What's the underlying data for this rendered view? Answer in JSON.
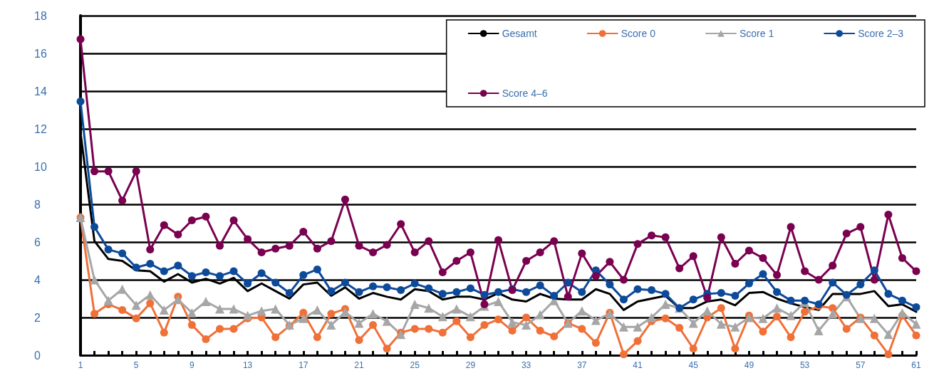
{
  "chart_data": {
    "type": "line",
    "categories": [
      "1",
      null,
      null,
      null,
      "5",
      null,
      null,
      null,
      "9",
      null,
      null,
      null,
      "13",
      null,
      null,
      null,
      "17",
      null,
      null,
      null,
      "21",
      null,
      null,
      null,
      "25",
      null,
      null,
      null,
      "29",
      null,
      null,
      null,
      "33",
      null,
      null,
      null,
      "37",
      null,
      null,
      null,
      "41",
      null,
      null,
      null,
      "45",
      null,
      null,
      null,
      "49",
      null,
      null,
      null,
      "53",
      null,
      null,
      null,
      "57",
      null,
      null,
      null,
      "61"
    ],
    "series": [
      {
        "name": "Gesamt",
        "color": "#000000",
        "marker": "none",
        "values": [
          11.8,
          6.05,
          5.1,
          5.0,
          4.5,
          4.45,
          3.9,
          4.3,
          3.85,
          4.05,
          3.8,
          4.1,
          3.4,
          3.8,
          3.4,
          3.0,
          3.75,
          3.85,
          3.15,
          3.6,
          3.0,
          3.3,
          3.1,
          2.95,
          3.5,
          3.4,
          2.95,
          3.1,
          3.1,
          2.95,
          3.3,
          2.95,
          2.85,
          3.25,
          3.0,
          2.95,
          2.95,
          3.5,
          3.25,
          2.4,
          2.85,
          3.0,
          3.15,
          2.5,
          2.5,
          2.85,
          2.95,
          2.65,
          3.3,
          3.35,
          3.0,
          2.75,
          2.55,
          2.4,
          3.25,
          3.25,
          3.25,
          3.4,
          2.6,
          2.7,
          2.3
        ]
      },
      {
        "name": "Score 0",
        "color": "#f07038",
        "marker": "circle",
        "values": [
          7.3,
          2.2,
          2.7,
          2.4,
          1.95,
          2.75,
          1.2,
          3.1,
          1.6,
          0.85,
          1.4,
          1.4,
          1.95,
          2.0,
          0.95,
          1.55,
          2.25,
          0.95,
          2.2,
          2.45,
          0.8,
          1.6,
          0.35,
          1.2,
          1.4,
          1.4,
          1.2,
          1.8,
          0.95,
          1.6,
          1.9,
          1.3,
          2.0,
          1.3,
          1.0,
          1.7,
          1.4,
          0.65,
          2.25,
          0.05,
          0.75,
          1.8,
          1.95,
          1.45,
          0.35,
          2.0,
          2.5,
          0.35,
          2.1,
          1.25,
          2.05,
          0.95,
          2.3,
          2.6,
          2.5,
          1.4,
          2.0,
          1.05,
          0.05,
          2.1,
          1.05
        ]
      },
      {
        "name": "Score 1",
        "color": "#a6a6a6",
        "marker": "triangle",
        "values": [
          7.3,
          4.0,
          2.9,
          3.5,
          2.65,
          3.2,
          2.4,
          2.95,
          2.25,
          2.85,
          2.45,
          2.45,
          2.1,
          2.35,
          2.45,
          1.6,
          1.95,
          2.4,
          1.6,
          2.3,
          1.7,
          2.2,
          1.8,
          1.1,
          2.7,
          2.5,
          2.05,
          2.45,
          2.05,
          2.6,
          2.85,
          1.75,
          1.6,
          2.15,
          2.9,
          1.7,
          2.35,
          1.85,
          2.2,
          1.5,
          1.5,
          2.0,
          2.7,
          2.5,
          1.7,
          2.35,
          1.65,
          1.5,
          2.0,
          1.95,
          2.5,
          2.1,
          2.8,
          1.3,
          2.2,
          3.1,
          1.95,
          1.95,
          1.1,
          2.25,
          1.65
        ]
      },
      {
        "name": "Score 2–3",
        "color": "#0d4a9a",
        "marker": "circle",
        "values": [
          13.45,
          6.8,
          5.6,
          5.4,
          4.65,
          4.85,
          4.45,
          4.75,
          4.2,
          4.4,
          4.2,
          4.45,
          3.8,
          4.35,
          3.85,
          3.3,
          4.25,
          4.55,
          3.4,
          3.85,
          3.35,
          3.65,
          3.6,
          3.45,
          3.8,
          3.55,
          3.25,
          3.35,
          3.55,
          3.2,
          3.35,
          3.5,
          3.35,
          3.7,
          3.15,
          3.85,
          3.35,
          4.5,
          3.75,
          2.95,
          3.5,
          3.45,
          3.25,
          2.5,
          2.95,
          3.25,
          3.3,
          3.15,
          3.8,
          4.3,
          3.35,
          2.9,
          2.9,
          2.7,
          3.85,
          3.2,
          3.75,
          4.5,
          3.25,
          2.9,
          2.55
        ]
      },
      {
        "name": "Score 4–6",
        "color": "#7a0050",
        "marker": "circle",
        "values": [
          16.75,
          9.75,
          9.75,
          8.2,
          9.75,
          5.6,
          6.9,
          6.4,
          7.15,
          7.35,
          5.8,
          7.15,
          6.15,
          5.45,
          5.65,
          5.8,
          6.55,
          5.65,
          6.05,
          8.25,
          5.8,
          5.45,
          5.85,
          6.95,
          5.45,
          6.05,
          4.4,
          5.0,
          5.45,
          2.7,
          6.1,
          3.45,
          5.0,
          5.45,
          6.05,
          3.1,
          5.4,
          4.2,
          4.95,
          4.0,
          5.9,
          6.35,
          6.25,
          4.6,
          5.25,
          3.05,
          6.25,
          4.85,
          5.55,
          5.15,
          4.25,
          6.8,
          4.45,
          4.0,
          4.75,
          6.45,
          6.8,
          4.0,
          7.45,
          5.15,
          4.45
        ]
      }
    ],
    "ylim": [
      0,
      18
    ],
    "yticks": [
      0,
      2,
      4,
      6,
      8,
      10,
      12,
      14,
      16,
      18
    ],
    "grid": "y",
    "legend": "top right",
    "line_style": "solid"
  }
}
